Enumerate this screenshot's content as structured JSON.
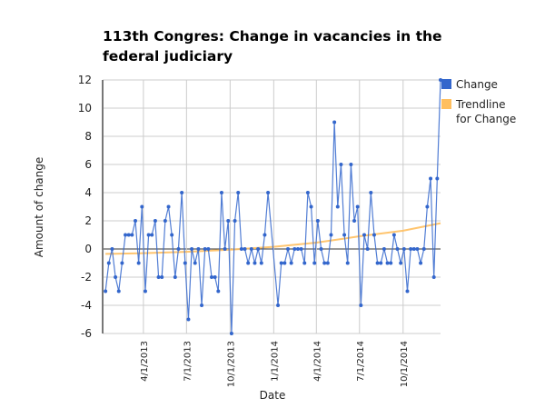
{
  "chart_data": {
    "type": "line",
    "title_lines": [
      "113th Congres: Change in vacancies in the",
      "federal judiciary"
    ],
    "xlabel": "Date",
    "ylabel": "Amount of change",
    "ylim": [
      -6,
      12
    ],
    "yticks": [
      -6,
      -4,
      -2,
      0,
      2,
      4,
      6,
      8,
      10,
      12
    ],
    "xlim": [
      "2013-01-05",
      "2014-12-19"
    ],
    "xticks": [
      {
        "date": "2013-04-01",
        "label": "4/1/2013"
      },
      {
        "date": "2013-07-01",
        "label": "7/1/2013"
      },
      {
        "date": "2013-10-01",
        "label": "10/1/2013"
      },
      {
        "date": "2014-01-01",
        "label": "1/1/2014"
      },
      {
        "date": "2014-04-01",
        "label": "4/1/2014"
      },
      {
        "date": "2014-07-01",
        "label": "7/1/2014"
      },
      {
        "date": "2014-10-01",
        "label": "10/1/2014"
      }
    ],
    "grid": true,
    "legend_position": "right",
    "series": [
      {
        "name": "Change",
        "color": "#3366cc",
        "x": [
          "2013-01-11",
          "2013-01-18",
          "2013-01-25",
          "2013-02-01",
          "2013-02-08",
          "2013-02-15",
          "2013-02-22",
          "2013-03-01",
          "2013-03-08",
          "2013-03-15",
          "2013-03-22",
          "2013-03-29",
          "2013-04-05",
          "2013-04-12",
          "2013-04-19",
          "2013-04-26",
          "2013-05-03",
          "2013-05-10",
          "2013-05-17",
          "2013-05-24",
          "2013-05-31",
          "2013-06-07",
          "2013-06-14",
          "2013-06-21",
          "2013-06-28",
          "2013-07-05",
          "2013-07-12",
          "2013-07-19",
          "2013-07-26",
          "2013-08-02",
          "2013-08-09",
          "2013-08-16",
          "2013-08-23",
          "2013-08-30",
          "2013-09-06",
          "2013-09-13",
          "2013-09-20",
          "2013-09-27",
          "2013-10-04",
          "2013-10-11",
          "2013-10-18",
          "2013-10-25",
          "2013-11-01",
          "2013-11-08",
          "2013-11-15",
          "2013-11-22",
          "2013-11-29",
          "2013-12-06",
          "2013-12-13",
          "2013-12-20",
          "2014-01-10",
          "2014-01-17",
          "2014-01-24",
          "2014-01-31",
          "2014-02-07",
          "2014-02-14",
          "2014-02-21",
          "2014-02-28",
          "2014-03-07",
          "2014-03-14",
          "2014-03-21",
          "2014-03-28",
          "2014-04-04",
          "2014-04-11",
          "2014-04-18",
          "2014-04-25",
          "2014-05-02",
          "2014-05-09",
          "2014-05-16",
          "2014-05-23",
          "2014-05-30",
          "2014-06-06",
          "2014-06-13",
          "2014-06-20",
          "2014-06-27",
          "2014-07-04",
          "2014-07-11",
          "2014-07-18",
          "2014-07-25",
          "2014-08-01",
          "2014-08-08",
          "2014-08-15",
          "2014-08-22",
          "2014-08-29",
          "2014-09-05",
          "2014-09-12",
          "2014-09-19",
          "2014-09-26",
          "2014-10-03",
          "2014-10-10",
          "2014-10-17",
          "2014-10-24",
          "2014-10-31",
          "2014-11-07",
          "2014-11-14",
          "2014-11-21",
          "2014-11-28",
          "2014-12-05",
          "2014-12-12",
          "2014-12-19"
        ],
        "values": [
          -3,
          -1,
          0,
          -2,
          -3,
          -1,
          1,
          1,
          1,
          2,
          -1,
          3,
          -3,
          1,
          1,
          2,
          -2,
          -2,
          2,
          3,
          1,
          -2,
          0,
          4,
          -1,
          -5,
          0,
          -1,
          0,
          -4,
          0,
          0,
          -2,
          -2,
          -3,
          4,
          0,
          2,
          -6,
          2,
          4,
          0,
          0,
          -1,
          0,
          -1,
          0,
          -1,
          1,
          4,
          -4,
          -1,
          -1,
          0,
          -1,
          0,
          0,
          0,
          -1,
          4,
          3,
          -1,
          2,
          0,
          -1,
          -1,
          1,
          9,
          3,
          6,
          1,
          -1,
          6,
          2,
          3,
          -4,
          1,
          0,
          4,
          1,
          -1,
          -1,
          0,
          -1,
          -1,
          1,
          0,
          -1,
          0,
          -3,
          0,
          0,
          0,
          -1,
          0,
          3,
          5,
          -2,
          5,
          12
        ]
      },
      {
        "name": "Trendline for Change",
        "legend_lines": [
          "Trendline",
          "for Change"
        ],
        "color": "#ffbf5f",
        "x": [
          "2013-01-11",
          "2013-04-01",
          "2013-07-01",
          "2013-10-01",
          "2014-01-01",
          "2014-04-01",
          "2014-07-01",
          "2014-10-01",
          "2014-12-19"
        ],
        "values": [
          -0.35,
          -0.3,
          -0.2,
          -0.05,
          0.15,
          0.45,
          0.9,
          1.3,
          1.83
        ]
      }
    ]
  }
}
